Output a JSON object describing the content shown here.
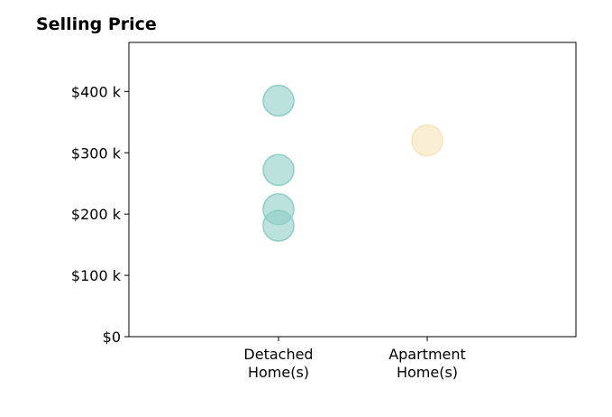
{
  "chart_data": {
    "type": "scatter",
    "title": "Selling Price",
    "xlabel": "",
    "ylabel": "",
    "categories": [
      "Detached\nHome(s)",
      "Apartment\nHome(s)"
    ],
    "category_ticks": [
      [
        "Detached",
        "Home(s)"
      ],
      [
        "Apartment",
        "Home(s)"
      ]
    ],
    "ylim": [
      0,
      480000
    ],
    "yticks": [
      {
        "value": 0,
        "label": "$0"
      },
      {
        "value": 100000,
        "label": "$100 k"
      },
      {
        "value": 200000,
        "label": "$200 k"
      },
      {
        "value": 300000,
        "label": "$300 k"
      },
      {
        "value": 400000,
        "label": "$400 k"
      }
    ],
    "series": [
      {
        "category": "Detached\nHome(s)",
        "color": "#8ecfc5",
        "values": [
          385000,
          272000,
          208000,
          181000
        ]
      },
      {
        "category": "Apartment\nHome(s)",
        "color": "#f7e3b8",
        "values": [
          320000
        ]
      }
    ],
    "grid": false,
    "legend": "none"
  }
}
